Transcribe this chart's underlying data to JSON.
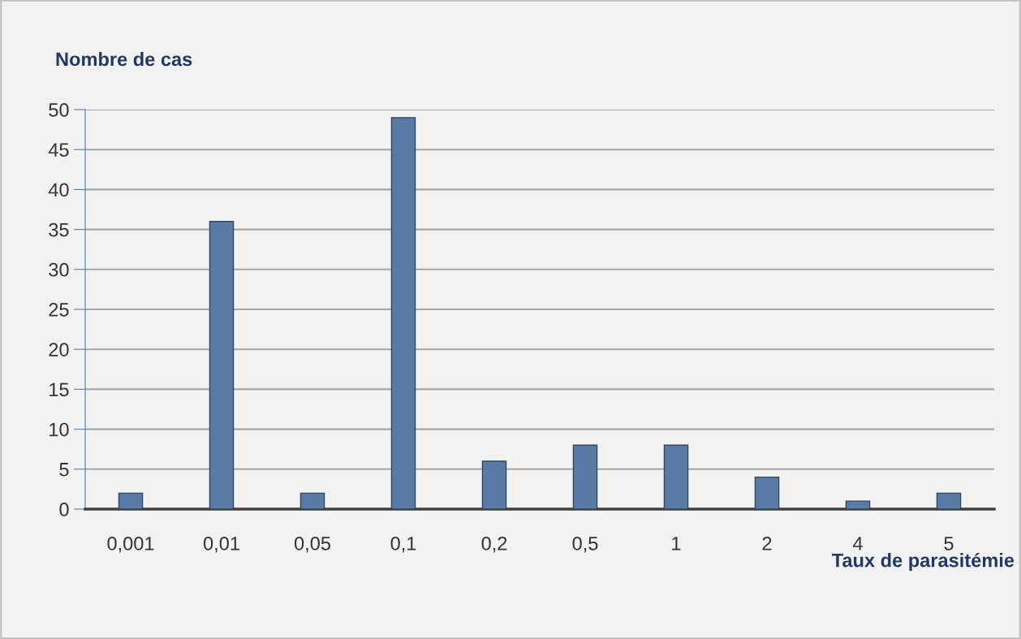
{
  "chart_data": {
    "type": "bar",
    "ylabel": "Nombre de cas",
    "xlabel": "Taux de parasitémie",
    "categories": [
      "0,001",
      "0,01",
      "0,05",
      "0,1",
      "0,2",
      "0,5",
      "1",
      "2",
      "4",
      "5"
    ],
    "values": [
      2,
      36,
      2,
      49,
      6,
      8,
      8,
      4,
      1,
      2
    ],
    "color": "#5a7aa6",
    "ylim": [
      0,
      50
    ],
    "yticks": [
      0,
      5,
      10,
      15,
      20,
      25,
      30,
      35,
      40,
      45,
      50
    ],
    "grid": "y",
    "legend": false
  }
}
